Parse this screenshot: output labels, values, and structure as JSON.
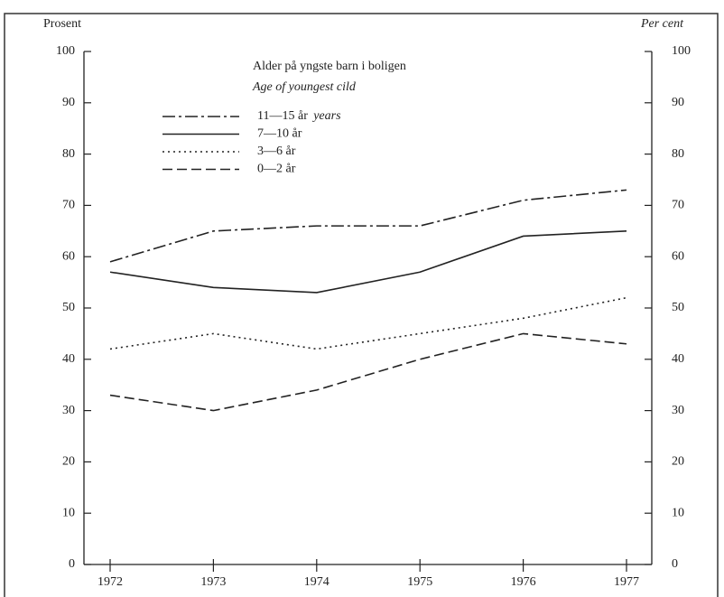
{
  "chart_data": {
    "type": "line",
    "legend_title": "Alder på yngste barn i boligen",
    "legend_subtitle": "Age of youngest cild",
    "ylabel": "Prosent",
    "y2label": "Per cent",
    "categories": [
      "1972",
      "1973",
      "1974",
      "1975",
      "1976",
      "1977"
    ],
    "series": [
      {
        "name": "11—15 år",
        "name_suffix": "years",
        "color": "#222222",
        "dash": "dashdot",
        "values": [
          59,
          65,
          66,
          66,
          71,
          73
        ]
      },
      {
        "name": "7—10 år",
        "color": "#222222",
        "dash": "solid",
        "values": [
          57,
          54,
          53,
          57,
          64,
          65
        ]
      },
      {
        "name": "3—6 år",
        "color": "#222222",
        "dash": "dotted",
        "values": [
          42,
          45,
          42,
          45,
          48,
          52
        ]
      },
      {
        "name": "0—2 år",
        "color": "#222222",
        "dash": "dashed",
        "values": [
          33,
          30,
          34,
          40,
          45,
          43
        ]
      }
    ],
    "ylim": [
      0,
      100
    ],
    "yticks": [
      0,
      10,
      20,
      30,
      40,
      50,
      60,
      70,
      80,
      90,
      100
    ],
    "y2lim": [
      0,
      100
    ],
    "y2ticks": [
      0,
      10,
      20,
      30,
      40,
      50,
      60,
      70,
      80,
      90,
      100
    ],
    "grid": false
  }
}
